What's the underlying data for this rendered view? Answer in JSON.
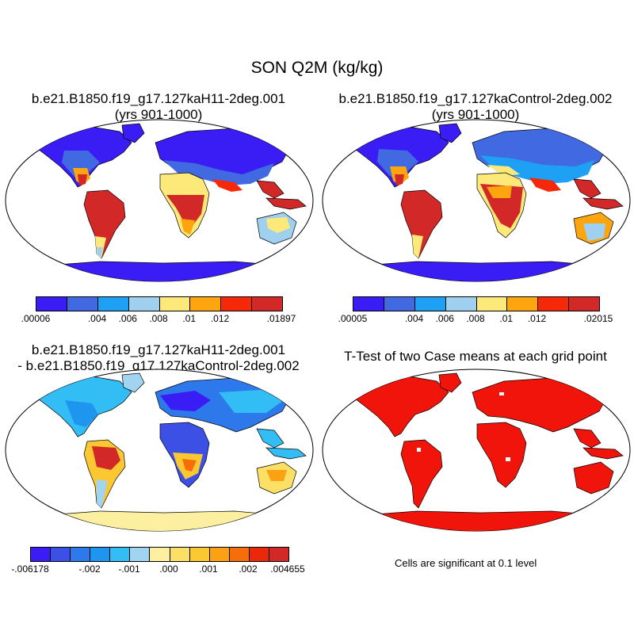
{
  "main_title": "SON Q2M (kg/kg)",
  "panels": [
    {
      "title_line1": "b.e21.B1850.f19_g17.127kaH11-2deg.001",
      "title_line2": "(yrs 901-1000)"
    },
    {
      "title_line1": "b.e21.B1850.f19_g17.127kaControl-2deg.002",
      "title_line2": "(yrs 901-1000)"
    },
    {
      "title_line1": "b.e21.B1850.f19_g17.127kaH11-2deg.001",
      "title_line2": "- b.e21.B1850.f19_g17.127kaControl-2deg.002"
    },
    {
      "title_line1": "T-Test of two Case means at each grid point",
      "title_line2": ""
    }
  ],
  "colorbars": [
    {
      "colors": [
        "#3a1cf5",
        "#4169e1",
        "#1ea0f5",
        "#9fd0f0",
        "#fce97a",
        "#fca50f",
        "#f5280a",
        "#d22828"
      ],
      "labels": [
        ".00006",
        ".004",
        ".006",
        ".008",
        ".01",
        ".012",
        ".01897"
      ]
    },
    {
      "colors": [
        "#3a1cf5",
        "#4169e1",
        "#1ea0f5",
        "#9fd0f0",
        "#fce97a",
        "#fca50f",
        "#f5280a",
        "#d22828"
      ],
      "labels": [
        ".00005",
        ".004",
        ".006",
        ".008",
        ".01",
        ".012",
        ".02015"
      ]
    },
    {
      "colors": [
        "#3a1cf5",
        "#3c50e6",
        "#2d78eb",
        "#1e96f0",
        "#32bdf5",
        "#a0d4f0",
        "#fcf0a0",
        "#fce065",
        "#fcc832",
        "#fca014",
        "#f56e0a",
        "#eb280a",
        "#d22828"
      ],
      "labels": [
        "-.006178",
        "-.002",
        "-.001",
        ".000",
        ".001",
        ".002",
        ".004655"
      ]
    }
  ],
  "significance_note": "Cells are significant at 0.1 level"
}
